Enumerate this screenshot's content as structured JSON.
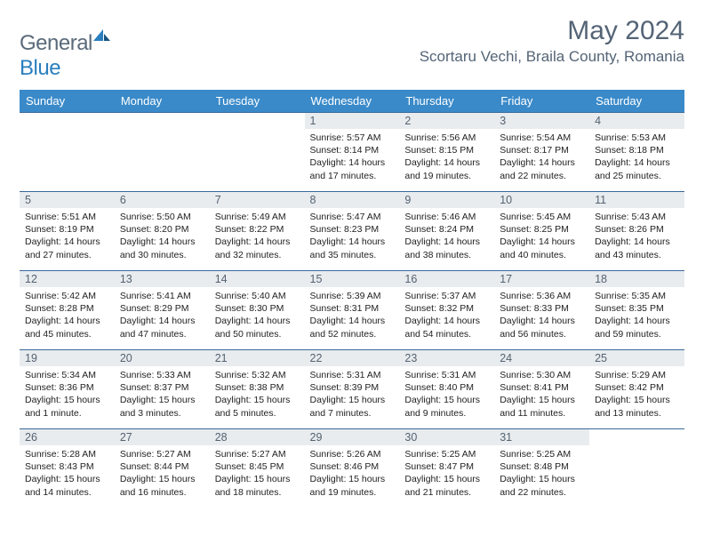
{
  "brand": {
    "part1": "General",
    "part2": "Blue"
  },
  "title": "May 2024",
  "location": "Scortaru Vechi, Braila County, Romania",
  "dayHeaders": [
    "Sunday",
    "Monday",
    "Tuesday",
    "Wednesday",
    "Thursday",
    "Friday",
    "Saturday"
  ],
  "colors": {
    "header_bg": "#3a8ac9",
    "header_text": "#ffffff",
    "row_border": "#3a6a9a",
    "daynum_bg": "#e8ecef",
    "daynum_text": "#556270",
    "title_text": "#546476",
    "logo_gray": "#5a6a7a",
    "logo_blue": "#2a7fbf",
    "body_text": "#222222",
    "page_bg": "#ffffff"
  },
  "typography": {
    "month_title_size": 30,
    "location_size": 17,
    "dayheader_size": 13,
    "daynum_size": 12.5,
    "body_size": 10.5,
    "logo_size": 24
  },
  "weeks": [
    [
      null,
      null,
      null,
      {
        "n": "1",
        "sr": "5:57 AM",
        "ss": "8:14 PM",
        "dl1": "14 hours",
        "dl2": "and 17 minutes."
      },
      {
        "n": "2",
        "sr": "5:56 AM",
        "ss": "8:15 PM",
        "dl1": "14 hours",
        "dl2": "and 19 minutes."
      },
      {
        "n": "3",
        "sr": "5:54 AM",
        "ss": "8:17 PM",
        "dl1": "14 hours",
        "dl2": "and 22 minutes."
      },
      {
        "n": "4",
        "sr": "5:53 AM",
        "ss": "8:18 PM",
        "dl1": "14 hours",
        "dl2": "and 25 minutes."
      }
    ],
    [
      {
        "n": "5",
        "sr": "5:51 AM",
        "ss": "8:19 PM",
        "dl1": "14 hours",
        "dl2": "and 27 minutes."
      },
      {
        "n": "6",
        "sr": "5:50 AM",
        "ss": "8:20 PM",
        "dl1": "14 hours",
        "dl2": "and 30 minutes."
      },
      {
        "n": "7",
        "sr": "5:49 AM",
        "ss": "8:22 PM",
        "dl1": "14 hours",
        "dl2": "and 32 minutes."
      },
      {
        "n": "8",
        "sr": "5:47 AM",
        "ss": "8:23 PM",
        "dl1": "14 hours",
        "dl2": "and 35 minutes."
      },
      {
        "n": "9",
        "sr": "5:46 AM",
        "ss": "8:24 PM",
        "dl1": "14 hours",
        "dl2": "and 38 minutes."
      },
      {
        "n": "10",
        "sr": "5:45 AM",
        "ss": "8:25 PM",
        "dl1": "14 hours",
        "dl2": "and 40 minutes."
      },
      {
        "n": "11",
        "sr": "5:43 AM",
        "ss": "8:26 PM",
        "dl1": "14 hours",
        "dl2": "and 43 minutes."
      }
    ],
    [
      {
        "n": "12",
        "sr": "5:42 AM",
        "ss": "8:28 PM",
        "dl1": "14 hours",
        "dl2": "and 45 minutes."
      },
      {
        "n": "13",
        "sr": "5:41 AM",
        "ss": "8:29 PM",
        "dl1": "14 hours",
        "dl2": "and 47 minutes."
      },
      {
        "n": "14",
        "sr": "5:40 AM",
        "ss": "8:30 PM",
        "dl1": "14 hours",
        "dl2": "and 50 minutes."
      },
      {
        "n": "15",
        "sr": "5:39 AM",
        "ss": "8:31 PM",
        "dl1": "14 hours",
        "dl2": "and 52 minutes."
      },
      {
        "n": "16",
        "sr": "5:37 AM",
        "ss": "8:32 PM",
        "dl1": "14 hours",
        "dl2": "and 54 minutes."
      },
      {
        "n": "17",
        "sr": "5:36 AM",
        "ss": "8:33 PM",
        "dl1": "14 hours",
        "dl2": "and 56 minutes."
      },
      {
        "n": "18",
        "sr": "5:35 AM",
        "ss": "8:35 PM",
        "dl1": "14 hours",
        "dl2": "and 59 minutes."
      }
    ],
    [
      {
        "n": "19",
        "sr": "5:34 AM",
        "ss": "8:36 PM",
        "dl1": "15 hours",
        "dl2": "and 1 minute."
      },
      {
        "n": "20",
        "sr": "5:33 AM",
        "ss": "8:37 PM",
        "dl1": "15 hours",
        "dl2": "and 3 minutes."
      },
      {
        "n": "21",
        "sr": "5:32 AM",
        "ss": "8:38 PM",
        "dl1": "15 hours",
        "dl2": "and 5 minutes."
      },
      {
        "n": "22",
        "sr": "5:31 AM",
        "ss": "8:39 PM",
        "dl1": "15 hours",
        "dl2": "and 7 minutes."
      },
      {
        "n": "23",
        "sr": "5:31 AM",
        "ss": "8:40 PM",
        "dl1": "15 hours",
        "dl2": "and 9 minutes."
      },
      {
        "n": "24",
        "sr": "5:30 AM",
        "ss": "8:41 PM",
        "dl1": "15 hours",
        "dl2": "and 11 minutes."
      },
      {
        "n": "25",
        "sr": "5:29 AM",
        "ss": "8:42 PM",
        "dl1": "15 hours",
        "dl2": "and 13 minutes."
      }
    ],
    [
      {
        "n": "26",
        "sr": "5:28 AM",
        "ss": "8:43 PM",
        "dl1": "15 hours",
        "dl2": "and 14 minutes."
      },
      {
        "n": "27",
        "sr": "5:27 AM",
        "ss": "8:44 PM",
        "dl1": "15 hours",
        "dl2": "and 16 minutes."
      },
      {
        "n": "28",
        "sr": "5:27 AM",
        "ss": "8:45 PM",
        "dl1": "15 hours",
        "dl2": "and 18 minutes."
      },
      {
        "n": "29",
        "sr": "5:26 AM",
        "ss": "8:46 PM",
        "dl1": "15 hours",
        "dl2": "and 19 minutes."
      },
      {
        "n": "30",
        "sr": "5:25 AM",
        "ss": "8:47 PM",
        "dl1": "15 hours",
        "dl2": "and 21 minutes."
      },
      {
        "n": "31",
        "sr": "5:25 AM",
        "ss": "8:48 PM",
        "dl1": "15 hours",
        "dl2": "and 22 minutes."
      },
      null
    ]
  ],
  "labels": {
    "sunrise": "Sunrise: ",
    "sunset": "Sunset: ",
    "daylight": "Daylight: "
  }
}
